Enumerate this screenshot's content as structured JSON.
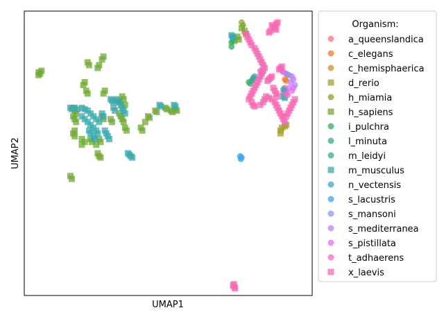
{
  "chart_data": {
    "type": "scatter",
    "title": "",
    "xlabel": "UMAP1",
    "ylabel": "UMAP2",
    "xlim": [
      0,
      10
    ],
    "ylim": [
      0,
      10
    ],
    "grid": false,
    "ticks_visible": false,
    "legend": {
      "title": "Organism:",
      "placement": "right-outside-top"
    },
    "series": [
      {
        "name": "a_queenslandica",
        "color": "#f77189",
        "marker": "circle",
        "points": [
          [
            9.05,
            7.3
          ],
          [
            9.1,
            7.2
          ],
          [
            9.0,
            7.15
          ]
        ]
      },
      {
        "name": "c_elegans",
        "color": "#f37932",
        "marker": "circle",
        "points": [
          [
            9.05,
            7.6
          ],
          [
            9.1,
            7.55
          ]
        ]
      },
      {
        "name": "c_hemisphaerica",
        "color": "#ca9233",
        "marker": "circle",
        "points": [
          [
            9.1,
            7.8
          ],
          [
            9.15,
            7.75
          ]
        ]
      },
      {
        "name": "d_rerio",
        "color": "#a39f31",
        "marker": "square",
        "points": [
          [
            8.9,
            5.7
          ],
          [
            8.95,
            5.9
          ],
          [
            8.9,
            5.8
          ],
          [
            9.1,
            6.0
          ],
          [
            9.05,
            5.95
          ]
        ]
      },
      {
        "name": "h_miamia",
        "color": "#86a731",
        "marker": "circle",
        "points": [
          [
            7.55,
            9.6
          ],
          [
            7.6,
            9.5
          ]
        ]
      },
      {
        "name": "h_sapiens",
        "color": "#6faa31",
        "marker": "square",
        "points": [
          [
            0.5,
            7.85
          ],
          [
            0.6,
            7.9
          ],
          [
            0.55,
            7.8
          ],
          [
            0.5,
            7.75
          ],
          [
            2.2,
            8.2
          ],
          [
            2.25,
            8.1
          ],
          [
            2.75,
            8.4
          ],
          [
            2.7,
            8.3
          ],
          [
            2.6,
            8.1
          ],
          [
            2.55,
            8.0
          ],
          [
            2.1,
            7.5
          ],
          [
            2.05,
            7.4
          ],
          [
            2.15,
            7.2
          ],
          [
            2.2,
            7.1
          ],
          [
            2.8,
            7.2
          ],
          [
            2.75,
            7.1
          ],
          [
            3.4,
            7.0
          ],
          [
            3.45,
            6.9
          ],
          [
            3.3,
            6.8
          ],
          [
            3.5,
            6.7
          ],
          [
            1.7,
            6.6
          ],
          [
            1.75,
            6.5
          ],
          [
            1.8,
            6.4
          ],
          [
            1.7,
            6.3
          ],
          [
            1.75,
            6.2
          ],
          [
            1.8,
            6.1
          ],
          [
            1.75,
            5.8
          ],
          [
            1.7,
            5.7
          ],
          [
            1.75,
            5.6
          ],
          [
            2.0,
            5.5
          ],
          [
            2.1,
            5.4
          ],
          [
            2.0,
            5.3
          ],
          [
            2.3,
            5.5
          ],
          [
            2.35,
            5.4
          ],
          [
            2.6,
            5.5
          ],
          [
            2.65,
            5.4
          ],
          [
            2.5,
            5.3
          ],
          [
            2.7,
            6.3
          ],
          [
            2.75,
            6.2
          ],
          [
            3.0,
            6.2
          ],
          [
            3.05,
            6.1
          ],
          [
            3.3,
            6.4
          ],
          [
            3.35,
            6.3
          ],
          [
            3.4,
            6.2
          ],
          [
            3.45,
            6.1
          ],
          [
            3.5,
            5.9
          ],
          [
            3.55,
            5.8
          ],
          [
            2.55,
            5.0
          ],
          [
            2.6,
            4.9
          ],
          [
            2.65,
            4.85
          ],
          [
            4.05,
            5.9
          ],
          [
            4.1,
            5.8
          ],
          [
            4.2,
            6.1
          ],
          [
            4.3,
            6.3
          ],
          [
            4.35,
            6.25
          ],
          [
            4.55,
            6.5
          ],
          [
            4.6,
            6.45
          ],
          [
            4.9,
            6.6
          ],
          [
            4.95,
            6.55
          ],
          [
            5.1,
            6.5
          ],
          [
            5.15,
            6.45
          ],
          [
            5.25,
            6.55
          ],
          [
            5.3,
            6.5
          ],
          [
            1.6,
            4.2
          ],
          [
            1.65,
            4.1
          ],
          [
            7.65,
            9.3
          ],
          [
            7.7,
            9.2
          ],
          [
            7.4,
            9.1
          ],
          [
            7.45,
            9.0
          ],
          [
            7.55,
            9.4
          ],
          [
            7.25,
            9.0
          ],
          [
            7.3,
            8.95
          ]
        ]
      },
      {
        "name": "i_pulchra",
        "color": "#35ae5e",
        "marker": "circle",
        "points": [
          [
            7.2,
            8.9
          ],
          [
            7.2,
            8.75
          ],
          [
            7.8,
            7.5
          ],
          [
            7.85,
            7.45
          ]
        ]
      },
      {
        "name": "l_minuta",
        "color": "#37ab89",
        "marker": "circle",
        "points": [
          [
            7.9,
            7.55
          ],
          [
            7.95,
            7.6
          ]
        ]
      },
      {
        "name": "m_leidyi",
        "color": "#38aa9d",
        "marker": "circle",
        "points": [
          [
            7.95,
            7.65
          ],
          [
            8.0,
            7.7
          ]
        ]
      },
      {
        "name": "m_musculus",
        "color": "#3aa9ac",
        "marker": "square",
        "points": [
          [
            1.6,
            6.6
          ],
          [
            1.65,
            6.55
          ],
          [
            1.75,
            6.6
          ],
          [
            1.85,
            6.55
          ],
          [
            2.0,
            6.6
          ],
          [
            2.1,
            6.55
          ],
          [
            2.2,
            6.5
          ],
          [
            2.0,
            6.3
          ],
          [
            2.1,
            6.2
          ],
          [
            2.2,
            6.1
          ],
          [
            2.3,
            6.0
          ],
          [
            2.4,
            5.9
          ],
          [
            2.25,
            5.8
          ],
          [
            2.3,
            5.7
          ],
          [
            2.5,
            5.8
          ],
          [
            2.55,
            5.7
          ],
          [
            2.4,
            5.6
          ],
          [
            2.45,
            5.5
          ],
          [
            2.8,
            5.8
          ],
          [
            2.85,
            5.7
          ],
          [
            2.9,
            5.6
          ],
          [
            2.95,
            5.5
          ],
          [
            2.3,
            6.4
          ],
          [
            2.4,
            6.3
          ],
          [
            2.5,
            6.2
          ],
          [
            2.6,
            6.1
          ],
          [
            2.7,
            6.4
          ],
          [
            2.75,
            6.3
          ],
          [
            3.0,
            6.9
          ],
          [
            3.05,
            6.85
          ],
          [
            3.1,
            6.8
          ],
          [
            3.2,
            6.9
          ],
          [
            3.25,
            6.85
          ],
          [
            3.3,
            6.8
          ],
          [
            3.35,
            6.7
          ],
          [
            3.4,
            6.6
          ],
          [
            3.45,
            6.5
          ],
          [
            3.5,
            6.4
          ],
          [
            3.1,
            6.6
          ],
          [
            3.15,
            6.5
          ],
          [
            3.6,
            5.0
          ],
          [
            3.65,
            4.95
          ],
          [
            3.7,
            4.9
          ],
          [
            3.75,
            4.85
          ],
          [
            4.7,
            6.7
          ],
          [
            4.75,
            6.65
          ],
          [
            5.2,
            6.7
          ],
          [
            5.25,
            6.65
          ],
          [
            7.2,
            9.15
          ],
          [
            7.25,
            9.1
          ],
          [
            7.25,
            9.05
          ],
          [
            9.0,
            7.0
          ],
          [
            9.05,
            6.95
          ]
        ]
      },
      {
        "name": "n_vectensis",
        "color": "#3ca7c1",
        "marker": "circle",
        "points": [
          [
            9.0,
            7.25
          ],
          [
            9.05,
            7.2
          ]
        ]
      },
      {
        "name": "s_lacustris",
        "color": "#3ba3ec",
        "marker": "circle",
        "points": [
          [
            7.5,
            4.9
          ],
          [
            7.55,
            4.85
          ],
          [
            7.52,
            4.8
          ]
        ]
      },
      {
        "name": "s_mansoni",
        "color": "#8e98f0",
        "marker": "circle",
        "points": [
          [
            9.1,
            7.8
          ],
          [
            9.2,
            7.75
          ]
        ]
      },
      {
        "name": "s_mediterranea",
        "color": "#bb83f4",
        "marker": "circle",
        "points": [
          [
            9.3,
            7.7
          ],
          [
            9.35,
            7.6
          ],
          [
            9.25,
            7.5
          ],
          [
            9.4,
            7.4
          ],
          [
            9.35,
            7.3
          ]
        ]
      },
      {
        "name": "s_pistillata",
        "color": "#e56ef2",
        "marker": "circle",
        "points": [
          [
            8.9,
            7.95
          ],
          [
            8.95,
            7.9
          ],
          [
            9.0,
            7.85
          ],
          [
            9.2,
            7.3
          ],
          [
            9.3,
            7.2
          ]
        ]
      },
      {
        "name": "t_adhaerens",
        "color": "#f565cc",
        "marker": "circle",
        "points": [
          [
            8.2,
            7.9
          ],
          [
            8.25,
            7.85
          ],
          [
            9.1,
            7.1
          ],
          [
            9.15,
            7.05
          ]
        ]
      },
      {
        "name": "x_laevis",
        "color": "#f668b3",
        "marker": "square",
        "points": [
          [
            8.6,
            9.5
          ],
          [
            8.65,
            9.45
          ],
          [
            8.7,
            9.4
          ],
          [
            8.75,
            9.35
          ],
          [
            8.8,
            9.6
          ],
          [
            8.75,
            9.55
          ],
          [
            8.55,
            9.3
          ],
          [
            8.5,
            9.25
          ],
          [
            7.7,
            9.2
          ],
          [
            7.75,
            9.1
          ],
          [
            7.8,
            9.0
          ],
          [
            7.85,
            8.9
          ],
          [
            7.9,
            8.8
          ],
          [
            8.0,
            8.7
          ],
          [
            8.05,
            8.6
          ],
          [
            8.1,
            8.5
          ],
          [
            8.15,
            8.4
          ],
          [
            8.2,
            8.3
          ],
          [
            8.25,
            8.2
          ],
          [
            8.3,
            8.1
          ],
          [
            8.35,
            8.0
          ],
          [
            8.3,
            7.9
          ],
          [
            8.25,
            7.8
          ],
          [
            8.2,
            7.7
          ],
          [
            8.15,
            7.6
          ],
          [
            8.1,
            7.5
          ],
          [
            8.05,
            7.4
          ],
          [
            8.0,
            7.3
          ],
          [
            7.95,
            7.2
          ],
          [
            7.9,
            7.1
          ],
          [
            7.85,
            7.0
          ],
          [
            7.8,
            6.9
          ],
          [
            7.9,
            6.8
          ],
          [
            7.95,
            6.7
          ],
          [
            8.0,
            6.65
          ],
          [
            8.2,
            6.7
          ],
          [
            8.3,
            6.8
          ],
          [
            8.35,
            6.9
          ],
          [
            8.4,
            7.0
          ],
          [
            8.5,
            6.95
          ],
          [
            8.6,
            6.9
          ],
          [
            8.7,
            6.8
          ],
          [
            8.75,
            6.7
          ],
          [
            8.8,
            6.6
          ],
          [
            8.85,
            6.5
          ],
          [
            8.9,
            6.4
          ],
          [
            8.95,
            6.3
          ],
          [
            9.0,
            6.2
          ],
          [
            9.05,
            6.1
          ],
          [
            9.1,
            6.3
          ],
          [
            9.15,
            6.4
          ],
          [
            9.2,
            6.5
          ],
          [
            9.25,
            6.6
          ],
          [
            9.3,
            6.7
          ],
          [
            9.35,
            6.8
          ],
          [
            9.4,
            6.9
          ],
          [
            8.9,
            8.0
          ],
          [
            8.85,
            7.95
          ],
          [
            8.95,
            8.05
          ],
          [
            8.6,
            7.7
          ],
          [
            8.55,
            7.65
          ],
          [
            8.5,
            7.6
          ],
          [
            8.45,
            7.55
          ],
          [
            8.65,
            7.3
          ],
          [
            8.7,
            7.2
          ],
          [
            8.75,
            7.1
          ],
          [
            8.8,
            7.0
          ],
          [
            7.25,
            0.35
          ],
          [
            7.3,
            0.3
          ],
          [
            7.28,
            0.4
          ],
          [
            7.32,
            0.25
          ]
        ]
      }
    ]
  }
}
